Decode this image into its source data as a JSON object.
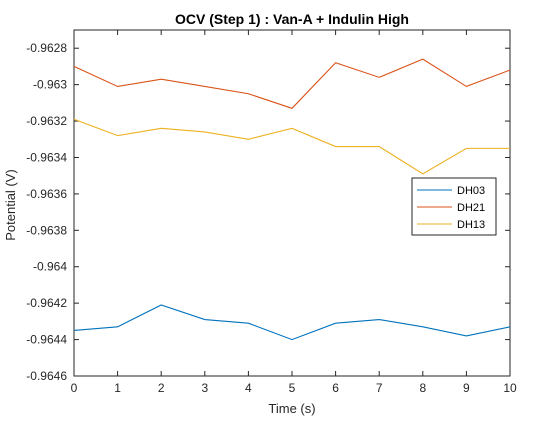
{
  "chart_data": {
    "type": "line",
    "title": "OCV (Step 1) : Van-A + Indulin High",
    "xlabel": "Time (s)",
    "ylabel": "Potential (V)",
    "xlim": [
      0,
      10
    ],
    "ylim": [
      -0.9646,
      -0.9627
    ],
    "x_ticks": [
      0,
      1,
      2,
      3,
      4,
      5,
      6,
      7,
      8,
      9,
      10
    ],
    "x_tick_labels": [
      "0",
      "1",
      "2",
      "3",
      "4",
      "5",
      "6",
      "7",
      "8",
      "9",
      "10"
    ],
    "y_ticks": [
      -0.9628,
      -0.963,
      -0.9632,
      -0.9634,
      -0.9636,
      -0.9638,
      -0.964,
      -0.9642,
      -0.9644,
      -0.9646
    ],
    "y_tick_labels": [
      "-0.9628",
      "-0.963",
      "-0.9632",
      "-0.9634",
      "-0.9636",
      "-0.9638",
      "-0.964",
      "-0.9642",
      "-0.9644",
      "-0.9646"
    ],
    "grid": false,
    "legend_position": "right",
    "x": [
      0,
      1,
      2,
      3,
      4,
      5,
      6,
      7,
      8,
      9,
      10
    ],
    "series": [
      {
        "name": "DH03",
        "color": "#0072BD",
        "values": [
          -0.96435,
          -0.96433,
          -0.96421,
          -0.96429,
          -0.96431,
          -0.9644,
          -0.96431,
          -0.96429,
          -0.96433,
          -0.96438,
          -0.96433
        ]
      },
      {
        "name": "DH21",
        "color": "#D95319",
        "values": [
          -0.9629,
          -0.96301,
          -0.96297,
          -0.96301,
          -0.96305,
          -0.96313,
          -0.96288,
          -0.96296,
          -0.96286,
          -0.96301,
          -0.96292
        ]
      },
      {
        "name": "DH13",
        "color": "#EDB120",
        "values": [
          -0.96319,
          -0.96328,
          -0.96324,
          -0.96326,
          -0.9633,
          -0.96324,
          -0.96334,
          -0.96334,
          -0.96349,
          -0.96335,
          -0.96335
        ]
      }
    ]
  }
}
